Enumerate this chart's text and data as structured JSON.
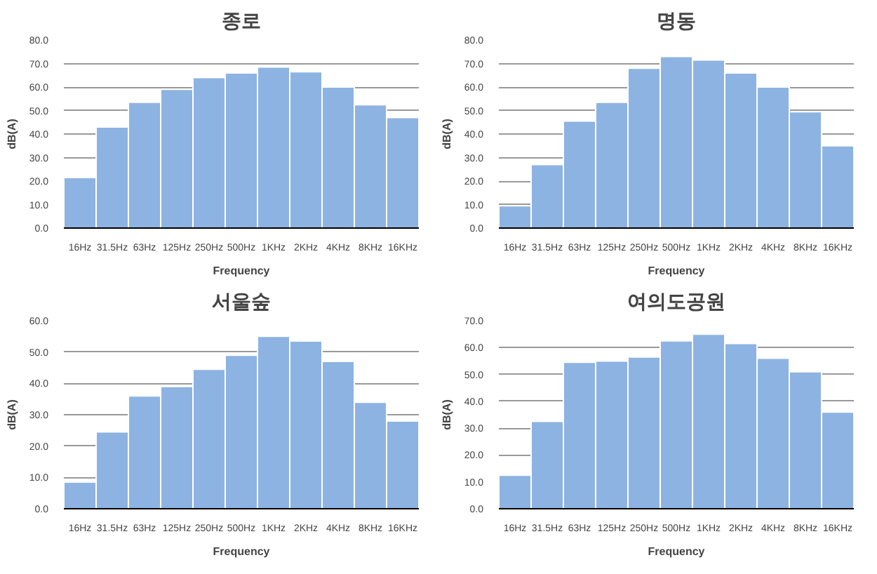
{
  "chart_data": [
    {
      "type": "bar",
      "title": "종로",
      "xlabel": "Frequency",
      "ylabel": "dB(A)",
      "categories": [
        "16Hz",
        "31.5Hz",
        "63Hz",
        "125Hz",
        "250Hz",
        "500Hz",
        "1KHz",
        "2KHz",
        "4KHz",
        "8KHz",
        "16KHz"
      ],
      "color": "#8db3e2",
      "values": [
        21.5,
        43,
        53.5,
        59,
        64,
        66,
        68.5,
        66.5,
        60,
        52.5,
        47
      ],
      "ylim": [
        0,
        80
      ],
      "yticks": [
        {
          "value": 0,
          "label": "0.0"
        },
        {
          "value": 10,
          "label": "10.0"
        },
        {
          "value": 20,
          "label": "20.0"
        },
        {
          "value": 30,
          "label": "30.0"
        },
        {
          "value": 40,
          "label": "40.0"
        },
        {
          "value": 50,
          "label": "50.0"
        },
        {
          "value": 60,
          "label": "60.0"
        },
        {
          "value": 70,
          "label": "70.0"
        },
        {
          "value": 80,
          "label": "80.0"
        }
      ],
      "grid": "y",
      "legend": false
    },
    {
      "type": "bar",
      "title": "명동",
      "xlabel": "Frequency",
      "ylabel": "dB(A)",
      "categories": [
        "16Hz",
        "31.5Hz",
        "63Hz",
        "125Hz",
        "250Hz",
        "500Hz",
        "1KHz",
        "2KHz",
        "4KHz",
        "8KHz",
        "16KHz"
      ],
      "color": "#8db3e2",
      "values": [
        9.5,
        27,
        45.5,
        53.5,
        68,
        73,
        71.5,
        66,
        60,
        49.5,
        35
      ],
      "ylim": [
        0,
        80
      ],
      "yticks": [
        {
          "value": 0,
          "label": "0.0"
        },
        {
          "value": 10,
          "label": "10.0"
        },
        {
          "value": 20,
          "label": "20.0"
        },
        {
          "value": 30,
          "label": "30.0"
        },
        {
          "value": 40,
          "label": "40.0"
        },
        {
          "value": 50,
          "label": "50.0"
        },
        {
          "value": 60,
          "label": "60.0"
        },
        {
          "value": 70,
          "label": "70.0"
        },
        {
          "value": 80,
          "label": "80.0"
        }
      ],
      "grid": "y",
      "legend": false
    },
    {
      "type": "bar",
      "title": "서울숲",
      "xlabel": "Frequency",
      "ylabel": "dB(A)",
      "categories": [
        "16Hz",
        "31.5Hz",
        "63Hz",
        "125Hz",
        "250Hz",
        "500Hz",
        "1KHz",
        "2KHz",
        "4KHz",
        "8KHz",
        "16KHz"
      ],
      "color": "#8db3e2",
      "values": [
        8.5,
        24.5,
        36,
        39,
        44.5,
        49,
        55,
        53.5,
        47,
        34,
        28
      ],
      "ylim": [
        0,
        60
      ],
      "yticks": [
        {
          "value": 0,
          "label": "0.0"
        },
        {
          "value": 10,
          "label": "10.0"
        },
        {
          "value": 20,
          "label": "20.0"
        },
        {
          "value": 30,
          "label": "30.0"
        },
        {
          "value": 40,
          "label": "40.0"
        },
        {
          "value": 50,
          "label": "50.0"
        },
        {
          "value": 60,
          "label": "60.0"
        }
      ],
      "grid": "y",
      "legend": false
    },
    {
      "type": "bar",
      "title": "여의도공원",
      "xlabel": "Frequency",
      "ylabel": "dB(A)",
      "categories": [
        "16Hz",
        "31.5Hz",
        "63Hz",
        "125Hz",
        "250Hz",
        "500Hz",
        "1KHz",
        "2KHz",
        "4KHz",
        "8KHz",
        "16KHz"
      ],
      "color": "#8db3e2",
      "values": [
        12.5,
        32.5,
        54.5,
        55,
        56.5,
        62.5,
        65,
        61.5,
        56,
        51,
        36
      ],
      "ylim": [
        0,
        70
      ],
      "yticks": [
        {
          "value": 0,
          "label": "0.0"
        },
        {
          "value": 10,
          "label": "10.0"
        },
        {
          "value": 20,
          "label": "20.0"
        },
        {
          "value": 30,
          "label": "30.0"
        },
        {
          "value": 40,
          "label": "40.0"
        },
        {
          "value": 50,
          "label": "50.0"
        },
        {
          "value": 60,
          "label": "60.0"
        },
        {
          "value": 70,
          "label": "70.0"
        }
      ],
      "grid": "y",
      "legend": false
    }
  ]
}
